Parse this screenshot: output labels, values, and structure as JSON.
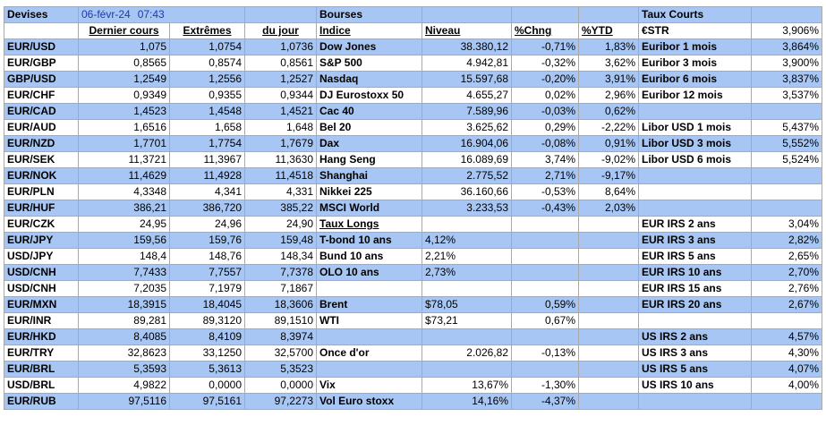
{
  "header": {
    "devises": "Devises",
    "date": "06-févr-24",
    "time": "07:43",
    "bourses": "Bourses",
    "taux_courts": "Taux Courts"
  },
  "columns": {
    "fx": [
      "Dernier cours",
      "Extrêmes",
      "du jour"
    ],
    "index": "Indice",
    "level": "Niveau",
    "chng": "%Chng",
    "ytd": "%YTD",
    "estr_label": "€STR",
    "estr_value": "3,906%"
  },
  "rows": [
    {
      "fx": [
        "EUR/USD",
        "1,075",
        "1,0754",
        "1,0736"
      ],
      "mid": [
        "Dow Jones",
        "38.380,12",
        "-0,71%",
        "1,83%"
      ],
      "right": [
        "Euribor 1 mois",
        "3,864%"
      ]
    },
    {
      "fx": [
        "EUR/GBP",
        "0,8565",
        "0,8574",
        "0,8561"
      ],
      "mid": [
        "S&P 500",
        "4.942,81",
        "-0,32%",
        "3,62%"
      ],
      "right": [
        "Euribor 3 mois",
        "3,900%"
      ]
    },
    {
      "fx": [
        "GBP/USD",
        "1,2549",
        "1,2556",
        "1,2527"
      ],
      "mid": [
        "Nasdaq",
        "15.597,68",
        "-0,20%",
        "3,91%"
      ],
      "right": [
        "Euribor 6 mois",
        "3,837%"
      ]
    },
    {
      "fx": [
        "EUR/CHF",
        "0,9349",
        "0,9355",
        "0,9344"
      ],
      "mid": [
        "DJ Eurostoxx 50",
        "4.655,27",
        "0,02%",
        "2,96%"
      ],
      "right": [
        "Euribor 12 mois",
        "3,537%"
      ]
    },
    {
      "fx": [
        "EUR/CAD",
        "1,4523",
        "1,4548",
        "1,4521"
      ],
      "mid": [
        "Cac 40",
        "7.589,96",
        "-0,03%",
        "0,62%"
      ],
      "right": [
        "",
        ""
      ]
    },
    {
      "fx": [
        "EUR/AUD",
        "1,6516",
        "1,658",
        "1,648"
      ],
      "mid": [
        "Bel 20",
        "3.625,62",
        "0,29%",
        "-2,22%"
      ],
      "right": [
        "Libor USD 1 mois",
        "5,437%"
      ]
    },
    {
      "fx": [
        "EUR/NZD",
        "1,7701",
        "1,7754",
        "1,7679"
      ],
      "mid": [
        "Dax",
        "16.904,06",
        "-0,08%",
        "0,91%"
      ],
      "right": [
        "Libor USD 3 mois",
        "5,552%"
      ]
    },
    {
      "fx": [
        "EUR/SEK",
        "11,3721",
        "11,3967",
        "11,3630"
      ],
      "mid": [
        "Hang Seng",
        "16.089,69",
        "3,74%",
        "-9,02%"
      ],
      "right": [
        "Libor USD 6 mois",
        "5,524%"
      ]
    },
    {
      "fx": [
        "EUR/NOK",
        "11,4629",
        "11,4928",
        "11,4518"
      ],
      "mid": [
        "Shanghai",
        "2.775,52",
        "2,71%",
        "-9,17%"
      ],
      "right": [
        "",
        ""
      ]
    },
    {
      "fx": [
        "EUR/PLN",
        "4,3348",
        "4,341",
        "4,331"
      ],
      "mid": [
        "Nikkei 225",
        "36.160,66",
        "-0,53%",
        "8,64%"
      ],
      "right": [
        "",
        ""
      ]
    },
    {
      "fx": [
        "EUR/HUF",
        "386,21",
        "386,720",
        "385,22"
      ],
      "mid": [
        "MSCI World",
        "3.233,53",
        "-0,43%",
        "2,03%"
      ],
      "right": [
        "",
        ""
      ]
    },
    {
      "fx": [
        "EUR/CZK",
        "24,95",
        "24,96",
        "24,90"
      ],
      "mid": [
        "Taux Longs",
        "",
        "",
        ""
      ],
      "right": [
        "EUR IRS 2 ans",
        "3,04%"
      ]
    },
    {
      "fx": [
        "EUR/JPY",
        "159,56",
        "159,76",
        "159,48"
      ],
      "mid": [
        "T-bond 10 ans",
        "4,12%",
        "",
        ""
      ],
      "right": [
        "EUR IRS 3 ans",
        "2,82%"
      ]
    },
    {
      "fx": [
        "USD/JPY",
        "148,4",
        "148,76",
        "148,34"
      ],
      "mid": [
        "Bund 10 ans",
        "2,21%",
        "",
        ""
      ],
      "right": [
        "EUR IRS 5 ans",
        "2,65%"
      ]
    },
    {
      "fx": [
        "USD/CNH",
        "7,7433",
        "7,7557",
        "7,7378"
      ],
      "mid": [
        "OLO 10 ans",
        "2,73%",
        "",
        ""
      ],
      "right": [
        "EUR IRS 10 ans",
        "2,70%"
      ]
    },
    {
      "fx": [
        "USD/CNH",
        "7,2035",
        "7,1979",
        "7,1867"
      ],
      "mid": [
        "",
        "",
        "",
        ""
      ],
      "right": [
        "EUR IRS 15 ans",
        "2,76%"
      ]
    },
    {
      "fx": [
        "EUR/MXN",
        "18,3915",
        "18,4045",
        "18,3606"
      ],
      "mid": [
        "Brent",
        "$78,05",
        "0,59%",
        ""
      ],
      "right": [
        "EUR IRS 20 ans",
        "2,67%"
      ]
    },
    {
      "fx": [
        "EUR/INR",
        "89,281",
        "89,3120",
        "89,1510"
      ],
      "mid": [
        "WTI",
        "$73,21",
        "0,67%",
        ""
      ],
      "right": [
        "",
        ""
      ]
    },
    {
      "fx": [
        "EUR/HKD",
        "8,4085",
        "8,4109",
        "8,3974"
      ],
      "mid": [
        "",
        "",
        "",
        ""
      ],
      "right": [
        "US IRS 2 ans",
        "4,57%"
      ]
    },
    {
      "fx": [
        "EUR/TRY",
        "32,8623",
        "33,1250",
        "32,5700"
      ],
      "mid": [
        "Once d'or",
        "2.026,82",
        "-0,13%",
        ""
      ],
      "right": [
        "US IRS 3 ans",
        "4,30%"
      ]
    },
    {
      "fx": [
        "EUR/BRL",
        "5,3593",
        "5,3613",
        "5,3523"
      ],
      "mid": [
        "",
        "",
        "",
        ""
      ],
      "right": [
        "US IRS 5 ans",
        "4,07%"
      ]
    },
    {
      "fx": [
        "USD/BRL",
        "4,9822",
        "0,0000",
        "0,0000"
      ],
      "mid": [
        "Vix",
        "13,67%",
        "-1,30%",
        ""
      ],
      "right": [
        "US IRS 10 ans",
        "4,00%"
      ]
    },
    {
      "fx": [
        "EUR/RUB",
        "97,5116",
        "97,5161",
        "97,2273"
      ],
      "mid": [
        "Vol Euro stoxx",
        "14,16%",
        "-4,37%",
        ""
      ],
      "right": [
        "",
        ""
      ]
    }
  ],
  "colors": {
    "row_blue": "#a7c6f3",
    "row_white": "#ffffff",
    "grid": "#a9a9a9",
    "date_text": "#1f3aa8"
  }
}
